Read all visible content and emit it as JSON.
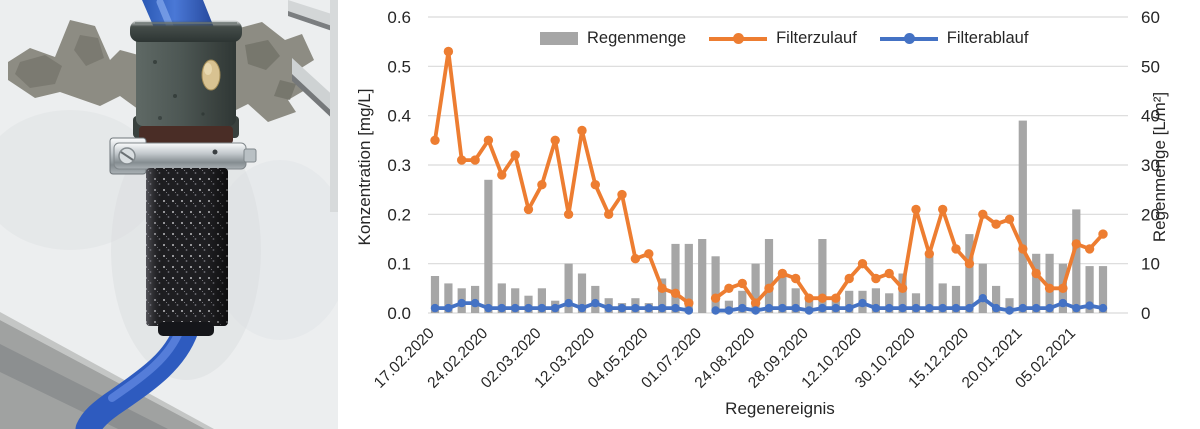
{
  "photo": {
    "parts": [
      "wall-background",
      "cement-patch",
      "stone-ledge",
      "inlet-pipe",
      "filter-head-cap",
      "sealant-blob",
      "rubber-seal",
      "hose-clamp",
      "filter-cartridge",
      "outlet-hose",
      "concrete-base"
    ]
  },
  "chart_data": {
    "type": "combo-bar-line",
    "title": "",
    "x_label": "Regenereignis",
    "x_tick_labels": [
      "17.02.2020",
      "24.02.2020",
      "02.03.2020",
      "12.03.2020",
      "04.05.2020",
      "01.07.2020",
      "24.08.2020",
      "28.09.2020",
      "12.10.2020",
      "30.10.2020",
      "15.12.2020",
      "20.01.2021",
      "05.02.2021"
    ],
    "x_tick_every": 4,
    "n_events": 51,
    "gridlines": true,
    "legend_position": "top",
    "grid_color": "#d9d9d9",
    "tick_color": "#262626",
    "y_left": {
      "label": "Konzentration [mg/L]",
      "min": 0,
      "max": 0.6,
      "step": 0.1
    },
    "y_right": {
      "label": "Regenmenge [L/m²]",
      "min": 0,
      "max": 60,
      "step": 10
    },
    "series": [
      {
        "name": "Regenmenge",
        "type": "bar",
        "axis": "right",
        "color": "#A6A6A6",
        "values": [
          7.5,
          6,
          5,
          5.5,
          27,
          6,
          5,
          3.5,
          5,
          2.5,
          10,
          8,
          5.5,
          3,
          2,
          3,
          2,
          7,
          14,
          14,
          15,
          11.5,
          2.5,
          4.5,
          10,
          15,
          7.5,
          5,
          3,
          15,
          3.5,
          4.5,
          4.5,
          5,
          4,
          8,
          4,
          12,
          6,
          5.5,
          16,
          10,
          5.5,
          3,
          39,
          12,
          12,
          10,
          21,
          9.5,
          9.5
        ]
      },
      {
        "name": "Filterzulauf",
        "type": "line",
        "axis": "left",
        "color": "#ED7D31",
        "values": [
          0.35,
          0.53,
          0.31,
          0.31,
          0.35,
          0.28,
          0.32,
          0.21,
          0.26,
          0.35,
          0.2,
          0.37,
          0.26,
          0.2,
          0.24,
          0.11,
          0.12,
          0.05,
          0.04,
          0.02,
          null,
          0.03,
          0.05,
          0.06,
          0.02,
          0.05,
          0.08,
          0.07,
          0.03,
          0.03,
          0.03,
          0.07,
          0.1,
          0.07,
          0.08,
          0.05,
          0.21,
          0.12,
          0.21,
          0.13,
          0.1,
          0.2,
          0.18,
          0.19,
          0.13,
          0.08,
          0.05,
          0.05,
          0.14,
          0.13,
          0.16
        ]
      },
      {
        "name": "Filterablauf",
        "type": "line",
        "axis": "left",
        "color": "#4472C4",
        "values": [
          0.01,
          0.01,
          0.02,
          0.02,
          0.01,
          0.01,
          0.01,
          0.01,
          0.01,
          0.01,
          0.02,
          0.01,
          0.02,
          0.01,
          0.01,
          0.01,
          0.01,
          0.01,
          0.01,
          0.005,
          null,
          0.005,
          0.005,
          0.01,
          0.005,
          0.01,
          0.01,
          0.01,
          0.005,
          0.01,
          0.01,
          0.01,
          0.02,
          0.01,
          0.01,
          0.01,
          0.01,
          0.01,
          0.01,
          0.01,
          0.01,
          0.03,
          0.01,
          0.005,
          0.01,
          0.01,
          0.01,
          0.02,
          0.01,
          0.015,
          0.01
        ]
      }
    ]
  }
}
